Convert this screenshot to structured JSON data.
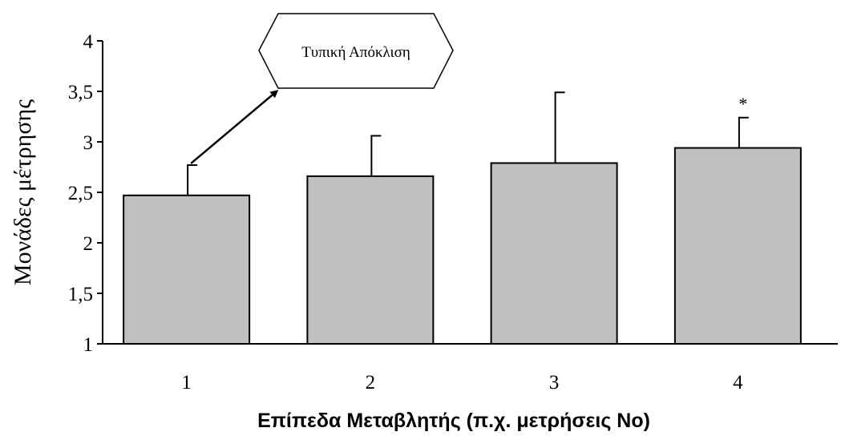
{
  "chart_data": {
    "type": "bar",
    "title": "",
    "categories": [
      "1",
      "2",
      "3",
      "4"
    ],
    "values": [
      2.47,
      2.66,
      2.79,
      2.94
    ],
    "error_bars": [
      0.3,
      0.4,
      0.7,
      0.3
    ],
    "significance_marks": [
      "",
      "",
      "",
      "*"
    ],
    "xlabel": "Επίπεδα Μεταβλητής (π.χ. μετρήσεις Νο)",
    "ylabel": "Μονάδες μέτρησης",
    "ylim": [
      1,
      4
    ],
    "yticks": [
      1,
      1.5,
      2,
      2.5,
      3,
      3.5,
      4
    ],
    "ytick_labels": [
      "1",
      "1,5",
      "2",
      "2,5",
      "3",
      "3,5",
      "4"
    ],
    "annotation": {
      "text": "Τυπική Απόκλιση",
      "points_to_category": "1"
    },
    "grid": false,
    "legend": "none",
    "bar_color": "#c0c0c0",
    "edge_color": "#000000"
  }
}
